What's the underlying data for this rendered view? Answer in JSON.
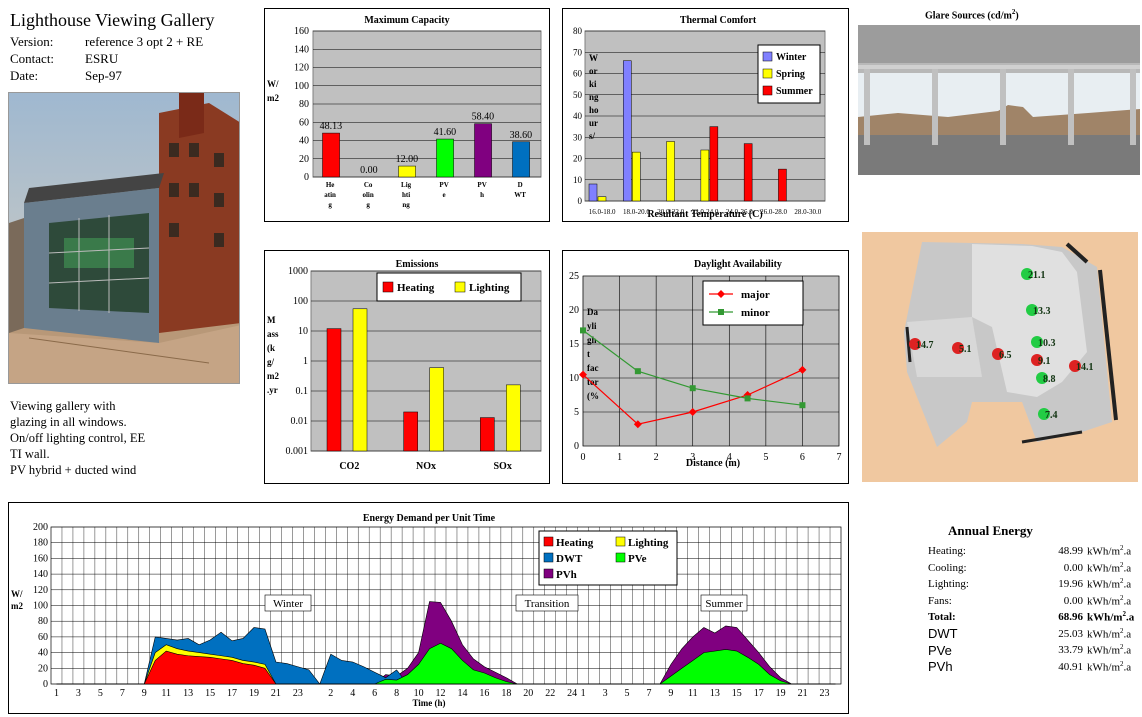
{
  "header": {
    "title": "Lighthouse Viewing Gallery",
    "fields": [
      {
        "key": "Version:",
        "value": "reference 3 opt 2 + RE"
      },
      {
        "key": "Contact:",
        "value": "ESRU"
      },
      {
        "key": "Date:",
        "value": "Sep-97"
      }
    ]
  },
  "description": [
    "Viewing gallery with",
    "glazing in all windows.",
    "On/off lighting control, EE",
    "TI wall.",
    "PV hybrid + ducted wind"
  ],
  "capacity": {
    "title": "Maximum Capacity",
    "ylabel": [
      "W/",
      "m2"
    ],
    "ticks": [
      "160",
      "140",
      "120",
      "100",
      "80",
      "60",
      "40",
      "20",
      "0"
    ],
    "bars": [
      {
        "label": [
          "He",
          "atin",
          "g"
        ],
        "value": 48.13,
        "text": "48.13",
        "color": "#ff0000"
      },
      {
        "label": [
          "Co",
          "olin",
          "g"
        ],
        "value": 0,
        "text": "0.00",
        "color": "#ff0000"
      },
      {
        "label": [
          "Lig",
          "hti",
          "ng"
        ],
        "value": 12,
        "text": "12.00",
        "color": "#ffff00"
      },
      {
        "label": [
          "PV",
          "e"
        ],
        "value": 41.6,
        "text": "41.60",
        "color": "#00ff00"
      },
      {
        "label": [
          "PV",
          "h"
        ],
        "value": 58.4,
        "text": "58.40",
        "color": "#800080"
      },
      {
        "label": [
          "D",
          "WT"
        ],
        "value": 38.6,
        "text": "38.60",
        "color": "#0070c0"
      }
    ]
  },
  "thermal": {
    "title": "Thermal Comfort",
    "ylabel": [
      "W",
      "or",
      "ki",
      "ng",
      "ho",
      "ur",
      "s/"
    ],
    "xlabel": "Resultant Temperature (C)",
    "ticks": [
      "80",
      "70",
      "60",
      "50",
      "40",
      "30",
      "20",
      "10",
      "0"
    ],
    "categories": [
      "16.0-18.0",
      "18.0-20.0",
      "20.0-22.0",
      "22.0-24.0",
      "24.0-26.0",
      "26.0-28.0",
      "28.0-30.0"
    ],
    "legend": [
      "Winter",
      "Spring",
      "Summer"
    ],
    "colors": [
      "#8080ff",
      "#ffff00",
      "#ff0000"
    ],
    "series": [
      [
        8,
        66,
        0,
        0,
        0,
        0,
        0
      ],
      [
        2,
        23,
        28,
        24,
        0,
        0,
        0
      ],
      [
        0,
        0,
        0,
        35,
        27,
        15,
        0
      ]
    ]
  },
  "emissions": {
    "title": "Emissions",
    "ylabel": [
      "M",
      "ass",
      "(k",
      "g/",
      "m2",
      ".yr"
    ],
    "ticks": [
      "1000",
      "100",
      "10",
      "1",
      "0.1",
      "0.01",
      "0.001"
    ],
    "categories": [
      "CO2",
      "NOx",
      "SOx"
    ],
    "legend": [
      "Heating",
      "Lighting"
    ],
    "colors": [
      "#ff0000",
      "#ffff00"
    ],
    "series": [
      [
        12,
        0.02,
        0.013
      ],
      [
        55,
        0.6,
        0.16
      ]
    ]
  },
  "daylight": {
    "title": "Daylight Availability",
    "ylabel": [
      "Da",
      "yli",
      "gh",
      "t",
      "fac",
      "tor",
      "(%"
    ],
    "xlabel": "Distance (m)",
    "yticks": [
      "25",
      "20",
      "15",
      "10",
      "5",
      "0"
    ],
    "xticks": [
      "0",
      "1",
      "2",
      "3",
      "4",
      "5",
      "6",
      "7"
    ],
    "legend": [
      "major",
      "minor"
    ],
    "colors": [
      "#ff0000",
      "#339933"
    ],
    "major": [
      [
        0,
        10.5
      ],
      [
        1.5,
        3.2
      ],
      [
        3,
        5
      ],
      [
        4.5,
        7.5
      ],
      [
        6,
        11.2
      ]
    ],
    "minor": [
      [
        0,
        17
      ],
      [
        1.5,
        11
      ],
      [
        3,
        8.5
      ],
      [
        4.5,
        7
      ],
      [
        6,
        6
      ]
    ]
  },
  "energy": {
    "title": "Energy Demand per Unit Time",
    "ylabel": [
      "W/",
      "m2"
    ],
    "xlabel": "Time (h)",
    "ticks": [
      "200",
      "180",
      "160",
      "140",
      "120",
      "100",
      "80",
      "60",
      "40",
      "20",
      "0"
    ],
    "xlabels": [
      "1",
      "3",
      "5",
      "7",
      "9",
      "11",
      "13",
      "15",
      "17",
      "19",
      "21",
      "23",
      "2",
      "4",
      "6",
      "8",
      "10",
      "12",
      "14",
      "16",
      "18",
      "20",
      "22",
      "24",
      "1",
      "3",
      "5",
      "7",
      "9",
      "11",
      "13",
      "15",
      "17",
      "19",
      "21",
      "23"
    ],
    "annotations": [
      "Winter",
      "Transition",
      "Summer"
    ],
    "legend": [
      "Heating",
      "Lighting",
      "DWT",
      "PVe",
      "PVh"
    ],
    "colors": {
      "heating": "#ff0000",
      "lighting": "#ffff00",
      "dwt": "#0070c0",
      "pve": "#00ff00",
      "pvh": "#800080"
    }
  },
  "glare": {
    "title": "Glare Sources (cd/m",
    "sup": "2",
    "close": ")"
  },
  "plan": {
    "values": [
      "21.1",
      "13.3",
      "10.3",
      "9.1",
      "8.8",
      "7.4",
      "14.7",
      "5.1",
      "6.5",
      "14.1"
    ]
  },
  "annual": {
    "title": "Annual Energy",
    "rows": [
      {
        "label": "Heating:",
        "value": "48.99",
        "unit": "kWh/m",
        "sup": "2",
        "suffix": ".a",
        "style": ""
      },
      {
        "label": "Cooling:",
        "value": "0.00",
        "unit": "kWh/m",
        "sup": "2",
        "suffix": ".a",
        "style": ""
      },
      {
        "label": "Lighting:",
        "value": "19.96",
        "unit": "kWh/m",
        "sup": "2",
        "suffix": ".a",
        "style": ""
      },
      {
        "label": "Fans:",
        "value": "0.00",
        "unit": "kWh/m",
        "sup": "2",
        "suffix": ".a",
        "style": ""
      },
      {
        "label": "Total:",
        "value": "68.96",
        "unit": "kWh/m",
        "sup": "2",
        "suffix": ".a",
        "style": "total"
      },
      {
        "label": "DWT",
        "value": "25.03",
        "unit": "kWh/m",
        "sup": "2",
        "suffix": ".a",
        "style": "sans"
      },
      {
        "label": "PVe",
        "value": "33.79",
        "unit": "kWh/m",
        "sup": "2",
        "suffix": ".a",
        "style": "sans"
      },
      {
        "label": "PVh",
        "value": "40.91",
        "unit": "kWh/m",
        "sup": "2",
        "suffix": ".a",
        "style": "sans"
      }
    ]
  },
  "chart_data": [
    {
      "type": "bar",
      "title": "Maximum Capacity",
      "ylabel": "W/m2",
      "categories": [
        "Heating",
        "Cooling",
        "Lighting",
        "PVe",
        "PVh",
        "DWT"
      ],
      "values": [
        48.13,
        0,
        12,
        41.6,
        58.4,
        38.6
      ],
      "ylim": [
        0,
        160
      ]
    },
    {
      "type": "bar",
      "title": "Thermal Comfort",
      "xlabel": "Resultant Temperature (C)",
      "ylabel": "Working hours/",
      "ylim": [
        0,
        80
      ],
      "categories": [
        "16.0-18.0",
        "18.0-20.0",
        "20.0-22.0",
        "22.0-24.0",
        "24.0-26.0",
        "26.0-28.0",
        "28.0-30.0"
      ],
      "series": [
        {
          "name": "Winter",
          "values": [
            8,
            66,
            0,
            0,
            0,
            0,
            0
          ]
        },
        {
          "name": "Spring",
          "values": [
            2,
            23,
            28,
            24,
            0,
            0,
            0
          ]
        },
        {
          "name": "Summer",
          "values": [
            0,
            0,
            0,
            35,
            27,
            15,
            0
          ]
        }
      ]
    },
    {
      "type": "bar",
      "title": "Emissions",
      "ylabel": "Mass (kg/m2.yr",
      "yscale": "log",
      "ylim": [
        0.001,
        1000
      ],
      "categories": [
        "CO2",
        "NOx",
        "SOx"
      ],
      "series": [
        {
          "name": "Heating",
          "values": [
            12,
            0.02,
            0.013
          ]
        },
        {
          "name": "Lighting",
          "values": [
            55,
            0.6,
            0.16
          ]
        }
      ]
    },
    {
      "type": "line",
      "title": "Daylight Availability",
      "xlabel": "Distance (m)",
      "ylabel": "Daylight factor (%",
      "xlim": [
        0,
        7
      ],
      "ylim": [
        0,
        25
      ],
      "series": [
        {
          "name": "major",
          "x": [
            0,
            1.5,
            3,
            4.5,
            6
          ],
          "y": [
            10.5,
            3.2,
            5,
            7.5,
            11.2
          ]
        },
        {
          "name": "minor",
          "x": [
            0,
            1.5,
            3,
            4.5,
            6
          ],
          "y": [
            17,
            11,
            8.5,
            7,
            6
          ]
        }
      ]
    },
    {
      "type": "area",
      "title": "Energy Demand per Unit Time",
      "xlabel": "Time (h)",
      "ylabel": "W/m2",
      "ylim": [
        0,
        200
      ],
      "series": [
        {
          "name": "Heating",
          "values": [
            0,
            0,
            0,
            0,
            0,
            0,
            0,
            0,
            0,
            30,
            42,
            38,
            36,
            35,
            34,
            32,
            30,
            26,
            24,
            20,
            0,
            0,
            0,
            0,
            0,
            0,
            0,
            0,
            0,
            0,
            0,
            0,
            0,
            0,
            0,
            0,
            0,
            0,
            0,
            0,
            0,
            0,
            0,
            0,
            0,
            0,
            0,
            0,
            0,
            0,
            0,
            0,
            0,
            0,
            0,
            0,
            0,
            0,
            0,
            0,
            0,
            0,
            0,
            0,
            0,
            0,
            0,
            0,
            0,
            0,
            0,
            0
          ]
        },
        {
          "name": "Lighting",
          "values": [
            0,
            0,
            0,
            0,
            0,
            0,
            0,
            0,
            0,
            40,
            50,
            45,
            42,
            40,
            38,
            36,
            34,
            30,
            28,
            25,
            0,
            0,
            0,
            0,
            0,
            0,
            0,
            0,
            0,
            0,
            0,
            0,
            0,
            0,
            0,
            0,
            0,
            0,
            0,
            0,
            0,
            0,
            0,
            0,
            0,
            0,
            0,
            0,
            0,
            0,
            0,
            0,
            0,
            0,
            0,
            0,
            0,
            0,
            0,
            0,
            0,
            0,
            0,
            0,
            0,
            0,
            0,
            0,
            0,
            0,
            0,
            0
          ]
        },
        {
          "name": "DWT",
          "values": [
            0,
            0,
            0,
            0,
            0,
            0,
            0,
            0,
            0,
            60,
            58,
            56,
            58,
            50,
            56,
            66,
            55,
            58,
            72,
            70,
            28,
            26,
            22,
            18,
            0,
            38,
            30,
            28,
            22,
            15,
            8,
            18,
            0,
            0,
            0,
            0,
            0,
            0,
            0,
            0,
            0,
            0,
            0,
            0,
            0,
            0,
            0,
            0,
            0,
            0,
            0,
            0,
            0,
            0,
            0,
            0,
            0,
            0,
            0,
            0,
            0,
            0,
            0,
            0,
            0,
            0,
            0,
            0,
            0,
            0,
            0,
            0
          ]
        },
        {
          "name": "PVe",
          "values": [
            0,
            0,
            0,
            0,
            0,
            0,
            0,
            0,
            0,
            0,
            0,
            0,
            0,
            0,
            0,
            0,
            0,
            0,
            0,
            0,
            0,
            0,
            0,
            0,
            0,
            0,
            0,
            0,
            0,
            0,
            6,
            5,
            12,
            25,
            45,
            52,
            45,
            30,
            18,
            14,
            8,
            3,
            0,
            0,
            0,
            0,
            0,
            0,
            0,
            0,
            0,
            0,
            0,
            0,
            0,
            0,
            10,
            20,
            30,
            40,
            42,
            44,
            42,
            34,
            25,
            12,
            4,
            0,
            0,
            0,
            0,
            0
          ]
        },
        {
          "name": "PVh",
          "values": [
            0,
            0,
            0,
            0,
            0,
            0,
            0,
            0,
            0,
            0,
            0,
            0,
            0,
            0,
            0,
            0,
            0,
            0,
            0,
            0,
            0,
            0,
            0,
            0,
            0,
            0,
            0,
            0,
            0,
            0,
            12,
            10,
            20,
            40,
            105,
            104,
            80,
            50,
            32,
            22,
            15,
            8,
            0,
            0,
            0,
            0,
            0,
            0,
            0,
            0,
            0,
            0,
            0,
            0,
            0,
            0,
            25,
            45,
            60,
            72,
            65,
            74,
            72,
            56,
            40,
            22,
            8,
            0,
            0,
            0,
            0,
            0
          ]
        }
      ]
    }
  ]
}
